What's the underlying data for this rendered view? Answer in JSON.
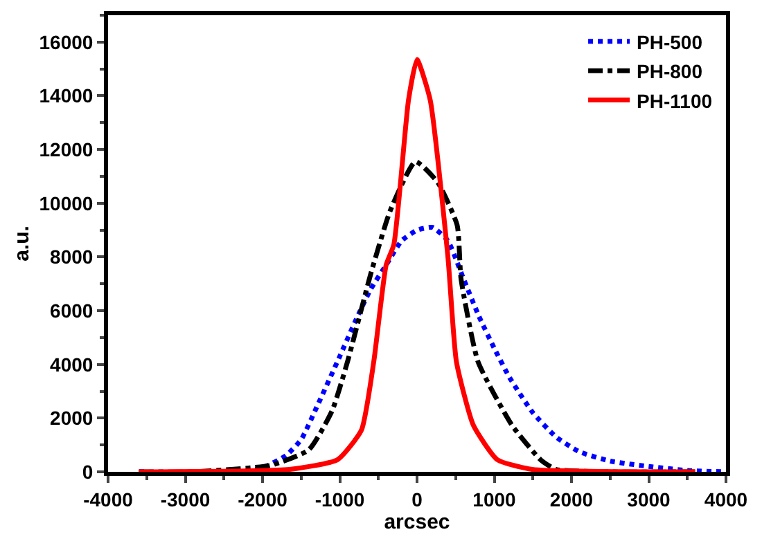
{
  "chart_data": {
    "type": "line",
    "xlabel": "arcsec",
    "ylabel": "a.u.",
    "xlim": [
      -4000,
      4000
    ],
    "xticks": [
      -4000,
      -3000,
      -2000,
      -1000,
      0,
      1000,
      2000,
      3000,
      4000
    ],
    "ylim": [
      0,
      17000
    ],
    "yticks": [
      0,
      2000,
      4000,
      6000,
      8000,
      10000,
      12000,
      14000,
      16000
    ],
    "legend": "top right",
    "series": [
      {
        "name": "PH-500",
        "color": "#0000ff",
        "line_style": "dotted",
        "x": [
          -3600,
          -2300,
          -2000,
          -1700,
          -1500,
          -1300,
          -1000,
          -800,
          -600,
          -400,
          -200,
          0,
          200,
          400,
          600,
          800,
          1000,
          1200,
          1500,
          1800,
          2100,
          2500,
          3000,
          3500,
          4000
        ],
        "values": [
          0,
          0,
          150,
          600,
          1200,
          2400,
          4300,
          5600,
          6800,
          7700,
          8600,
          9000,
          9100,
          8600,
          7200,
          5800,
          4600,
          3500,
          2200,
          1300,
          750,
          400,
          200,
          50,
          0
        ]
      },
      {
        "name": "PH-800",
        "color": "#000000",
        "line_style": "dashdot",
        "x": [
          -3600,
          -2900,
          -1900,
          -1400,
          -1100,
          -900,
          -600,
          -350,
          -20,
          270,
          520,
          570,
          790,
          1230,
          1600,
          1800,
          2500,
          3600
        ],
        "values": [
          0,
          0,
          240,
          820,
          2270,
          4100,
          7360,
          9700,
          11550,
          10770,
          9180,
          7180,
          4100,
          1730,
          450,
          90,
          0,
          0
        ]
      },
      {
        "name": "PH-1100",
        "color": "#ff0000",
        "line_style": "solid",
        "x": [
          -3600,
          -1650,
          -1030,
          -720,
          -560,
          -400,
          -300,
          -110,
          0,
          170,
          400,
          510,
          730,
          1040,
          1490,
          3600
        ],
        "values": [
          0,
          90,
          450,
          1550,
          4100,
          7700,
          8460,
          13850,
          15350,
          13850,
          8000,
          4100,
          1730,
          450,
          90,
          0
        ]
      }
    ]
  }
}
